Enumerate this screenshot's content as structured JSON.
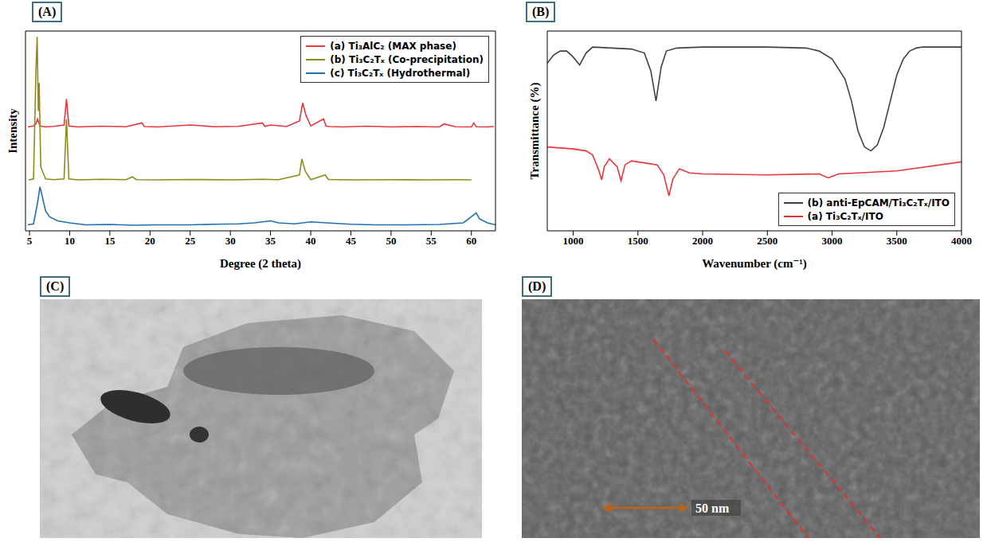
{
  "chart_data": [
    {
      "panel_label": "(A)",
      "type": "line",
      "x_label": "Degree (2 theta)",
      "y_label": "Intensity",
      "xlim": [
        4.5,
        63
      ],
      "xticks": [
        5,
        10,
        15,
        20,
        25,
        30,
        35,
        40,
        45,
        50,
        55,
        60
      ],
      "ylim": [
        0,
        100
      ],
      "tick_labels": "x",
      "grid": false,
      "legend": "top-right",
      "series": [
        {
          "name": "(a) Ti₃AlC₂ (MAX phase)",
          "color": "#e8383d",
          "x": [
            4.8,
            5.5,
            5.8,
            6,
            6.3,
            7,
            8,
            9.3,
            9.6,
            9.9,
            11,
            14,
            17,
            19,
            19.3,
            21,
            25,
            28,
            31,
            34,
            34.3,
            35,
            37,
            38.6,
            39,
            39.4,
            40,
            41.6,
            41.9,
            42.3,
            44,
            47,
            50,
            53,
            56,
            56.6,
            58,
            60,
            60.3,
            60.6,
            62,
            62.8
          ],
          "values": [
            52,
            52.5,
            53.5,
            56,
            52.5,
            52,
            52.3,
            53,
            66,
            52.5,
            52,
            52.4,
            52.1,
            54,
            52.2,
            52,
            53,
            52.1,
            52.3,
            54,
            52.3,
            53,
            52.2,
            55,
            64,
            58,
            52.5,
            56,
            52.5,
            52.2,
            52,
            52.4,
            52,
            52.2,
            52,
            53.5,
            52.1,
            52,
            54,
            52.1,
            52,
            52.2
          ]
        },
        {
          "name": "(b) Ti₃C₂Tₓ (Co-precipitation)",
          "color": "#8c8c1c",
          "x": [
            4.9,
            5.5,
            5.8,
            5.95,
            6.1,
            6.2,
            6.4,
            7,
            8,
            9.3,
            9.6,
            9.9,
            11,
            14,
            17,
            17.8,
            18.3,
            21,
            25,
            30,
            34,
            36,
            38.6,
            38.9,
            39.3,
            40,
            41.8,
            42.2,
            45,
            50,
            55,
            58,
            60
          ],
          "values": [
            25.5,
            26,
            80,
            97,
            60,
            74,
            32,
            26,
            25.6,
            26,
            56,
            26,
            25.5,
            25.8,
            25.6,
            27,
            25.6,
            25.5,
            25.7,
            25.5,
            25.8,
            25.6,
            28,
            36,
            30,
            25.6,
            28,
            25.7,
            25.5,
            25.6,
            25.5,
            25.6,
            25.5
          ]
        },
        {
          "name": "(c) Ti₃C₂Tₓ (Hydrothermal)",
          "color": "#1f6fb4",
          "x": [
            4.8,
            5.5,
            6,
            6.3,
            6.6,
            7,
            7.5,
            8.5,
            10,
            12,
            15,
            18,
            21,
            25,
            28,
            31,
            33,
            35,
            36,
            38,
            40,
            42,
            45,
            48,
            52,
            56,
            59,
            60.3,
            60.6,
            61,
            62,
            63
          ],
          "values": [
            3,
            3.5,
            14,
            22,
            17,
            10,
            7,
            5,
            4,
            3,
            3.2,
            2.8,
            3,
            3,
            3.3,
            3.5,
            4,
            5,
            4,
            3.5,
            4.5,
            4,
            3.3,
            3,
            3,
            3.2,
            4,
            8,
            9,
            6,
            4,
            3
          ]
        }
      ]
    },
    {
      "panel_label": "(B)",
      "type": "line",
      "x_label": "Wavenumber (cm⁻¹)",
      "y_label": "Transmittance (%)",
      "xlim": [
        800,
        4000
      ],
      "xticks": [
        1000,
        1500,
        2000,
        2500,
        3000,
        3500,
        4000
      ],
      "ylim": [
        0,
        100
      ],
      "tick_labels": "x",
      "grid": false,
      "legend": "bottom-right",
      "series": [
        {
          "name": "(b) anti-EpCAM/Ti₃C₂Tₓ/ITO",
          "color": "#404040",
          "x": [
            800,
            850,
            900,
            950,
            1000,
            1050,
            1100,
            1150,
            1300,
            1450,
            1550,
            1600,
            1640,
            1680,
            1720,
            1800,
            2000,
            2500,
            2800,
            2900,
            3000,
            3100,
            3150,
            3200,
            3250,
            3300,
            3350,
            3400,
            3450,
            3500,
            3550,
            3600,
            3650,
            3700,
            4000
          ],
          "values": [
            84,
            88,
            90,
            90,
            87,
            83,
            89,
            92,
            91.5,
            91,
            89,
            80,
            65,
            82,
            90,
            91.5,
            92,
            92,
            91.5,
            90,
            86,
            76,
            65,
            50,
            42,
            40,
            43,
            52,
            65,
            78,
            86,
            90,
            91.5,
            92,
            92
          ]
        },
        {
          "name": "(a) Ti₃C₂Tₓ/ITO",
          "color": "#e8383d",
          "x": [
            800,
            900,
            1000,
            1100,
            1150,
            1200,
            1220,
            1240,
            1280,
            1340,
            1370,
            1400,
            1450,
            1550,
            1650,
            1700,
            1740,
            1770,
            1820,
            1900,
            2000,
            2500,
            2900,
            2970,
            3050,
            3500,
            4000
          ],
          "values": [
            42,
            41.5,
            41,
            40,
            38,
            30,
            25.5,
            32,
            36,
            32,
            25,
            33,
            35,
            34,
            33,
            28,
            17.5,
            26,
            31,
            29,
            28.5,
            28,
            28.5,
            26.5,
            28.5,
            30,
            34.5
          ]
        }
      ]
    }
  ],
  "images": [
    {
      "panel_label": "(C)"
    },
    {
      "panel_label": "(D)",
      "scale_bar": "50 nm"
    }
  ]
}
